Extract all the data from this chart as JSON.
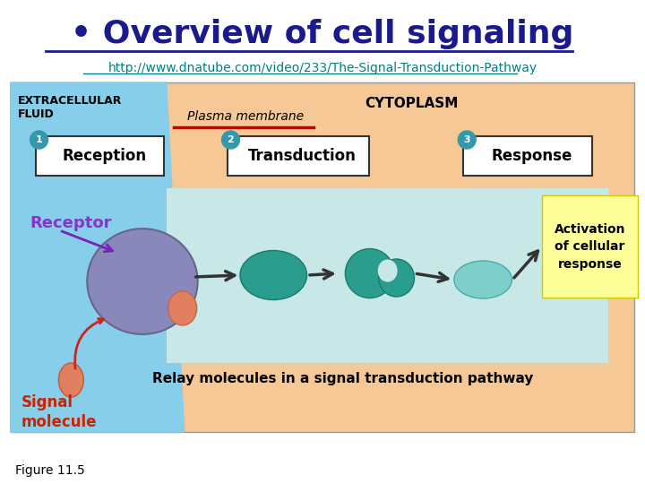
{
  "title": "• Overview of cell signaling",
  "url": "http://www.dnatube.com/video/233/The-Signal-Transduction-Pathway",
  "bg_color": "#ffffff",
  "diagram_bg": "#f5c896",
  "extracell_bg": "#87ceeb",
  "relay_box_bg": "#c8e8e8",
  "yellow_box_bg": "#ffff99",
  "title_color": "#1a1a8c",
  "url_color": "#008080",
  "extracell_label": "EXTRACELLULAR\nFLUID",
  "cytoplasm_label": "CYTOPLASM",
  "plasma_label": "Plasma membrane",
  "receptor_label": "Receptor",
  "signal_label": "Signal\nmolecule",
  "reception_label": "Reception",
  "transduction_label": "Transduction",
  "response_label": "Response",
  "relay_label": "Relay molecules in a signal transduction pathway",
  "activation_label": "Activation\nof cellular\nresponse",
  "figure_label": "Figure 11.5",
  "receptor_color": "#9b59b6",
  "signal_color": "#e74c3c",
  "teal_color": "#2a9d8f",
  "light_teal": "#7ececa",
  "sphere_color": "#8888bb",
  "arrow_color": "#cc0000",
  "purple_arrow": "#6633cc"
}
